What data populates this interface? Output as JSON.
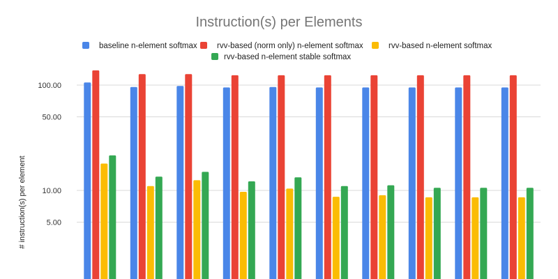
{
  "chart_data": {
    "type": "bar",
    "title": "Instruction(s) per Elements",
    "xlabel": "",
    "ylabel": "# instruction(s) per element",
    "yscale": "log",
    "ylim": [
      2,
      170
    ],
    "yticks": [
      5,
      10,
      50,
      100
    ],
    "ytick_labels": [
      "5.00",
      "10.00",
      "50.00",
      "100.00"
    ],
    "grid": true,
    "legend_position": "top",
    "categories": [
      "",
      "",
      "",
      "",
      "",
      "",
      "",
      "",
      "",
      ""
    ],
    "series": [
      {
        "name": "baseline n-element softmax",
        "color": "#4a86e8",
        "values": [
          106,
          96,
          98,
          95,
          96,
          95,
          95,
          95,
          95,
          95
        ]
      },
      {
        "name": "rvv-based (norm only) n-element softmax",
        "color": "#ea4335",
        "values": [
          138,
          127,
          127,
          124,
          124,
          124,
          124,
          124,
          124,
          124
        ]
      },
      {
        "name": "rvv-based n-element softmax",
        "color": "#fbbc04",
        "values": [
          18,
          11,
          12.5,
          9.7,
          10.4,
          8.7,
          9,
          8.6,
          8.6,
          8.6
        ]
      },
      {
        "name": "rvv-based n-element stable softmax",
        "color": "#34a853",
        "values": [
          21.5,
          13.5,
          15,
          12.2,
          13.3,
          11,
          11.2,
          10.6,
          10.6,
          10.6
        ]
      }
    ]
  }
}
